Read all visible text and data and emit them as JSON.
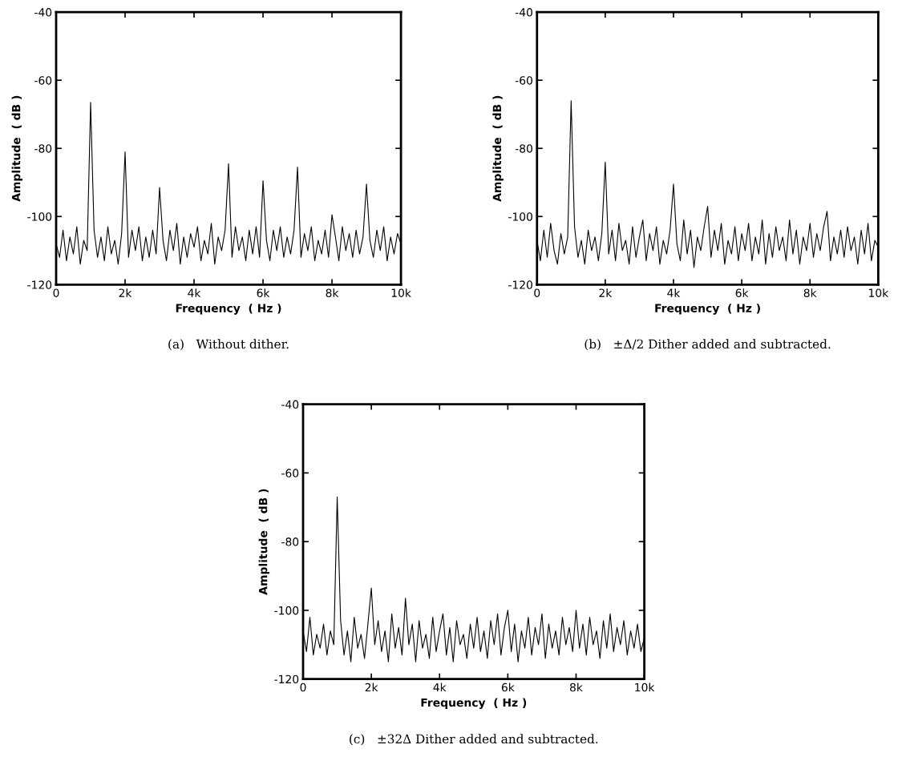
{
  "chart_data": [
    {
      "type": "line",
      "xlabel": "Frequency  ( Hz )",
      "ylabel": "Amplitude  ( dB )",
      "annotations": [
        "(a)   Without dither."
      ],
      "xlim": [
        0,
        10000
      ],
      "ylim": [
        -120,
        -40
      ],
      "xticks": [
        0,
        {
          "value": 2000,
          "label": "2k"
        },
        {
          "value": 4000,
          "label": "4k"
        },
        {
          "value": 6000,
          "label": "6k"
        },
        {
          "value": 8000,
          "label": "8k"
        },
        {
          "value": 10000,
          "label": "10k"
        }
      ],
      "yticks": [
        -120,
        -100,
        -80,
        -60,
        -40
      ],
      "x": [
        0,
        100,
        200,
        300,
        400,
        500,
        600,
        700,
        800,
        900,
        1000,
        1100,
        1200,
        1300,
        1400,
        1500,
        1600,
        1700,
        1800,
        1900,
        2000,
        2100,
        2200,
        2300,
        2400,
        2500,
        2600,
        2700,
        2800,
        2900,
        3000,
        3100,
        3200,
        3300,
        3400,
        3500,
        3600,
        3700,
        3800,
        3900,
        4000,
        4100,
        4200,
        4300,
        4400,
        4500,
        4600,
        4700,
        4800,
        4900,
        5000,
        5100,
        5200,
        5300,
        5400,
        5500,
        5600,
        5700,
        5800,
        5900,
        6000,
        6100,
        6200,
        6300,
        6400,
        6500,
        6600,
        6700,
        6800,
        6900,
        7000,
        7100,
        7200,
        7300,
        7400,
        7500,
        7600,
        7700,
        7800,
        7900,
        8000,
        8100,
        8200,
        8300,
        8400,
        8500,
        8600,
        8700,
        8800,
        8900,
        9000,
        9100,
        9200,
        9300,
        9400,
        9500,
        9600,
        9700,
        9800,
        9900,
        10000
      ],
      "series": [
        {
          "color": "#000000",
          "values": [
            -108,
            -112,
            -104,
            -113,
            -106,
            -111,
            -103,
            -114,
            -107,
            -110,
            -66.5,
            -104,
            -112,
            -106,
            -113,
            -103,
            -111,
            -107,
            -114,
            -105,
            -81,
            -112,
            -104,
            -110,
            -103,
            -113,
            -106,
            -112,
            -104,
            -111,
            -91.5,
            -107,
            -113,
            -104,
            -110,
            -102,
            -114,
            -106,
            -112,
            -105,
            -109,
            -103,
            -113,
            -107,
            -111,
            -102,
            -114,
            -106,
            -110,
            -104,
            -84.5,
            -112,
            -103,
            -110,
            -106,
            -113,
            -104,
            -111,
            -103,
            -112,
            -89.5,
            -107,
            -113,
            -104,
            -110,
            -103,
            -112,
            -106,
            -111,
            -104,
            -85.5,
            -112,
            -105,
            -110,
            -103,
            -113,
            -107,
            -111,
            -104,
            -112,
            -99.5,
            -106,
            -113,
            -103,
            -110,
            -105,
            -112,
            -104,
            -111,
            -106,
            -90.5,
            -107,
            -112,
            -104,
            -110,
            -103,
            -113,
            -106,
            -111,
            -105,
            -108
          ]
        }
      ]
    },
    {
      "type": "line",
      "xlabel": "Frequency  ( Hz )",
      "ylabel": "Amplitude  ( dB )",
      "annotations": [
        "(b)   ±Δ/2 Dither added and subtracted."
      ],
      "xlim": [
        0,
        10000
      ],
      "ylim": [
        -120,
        -40
      ],
      "xticks": [
        0,
        {
          "value": 2000,
          "label": "2k"
        },
        {
          "value": 4000,
          "label": "4k"
        },
        {
          "value": 6000,
          "label": "6k"
        },
        {
          "value": 8000,
          "label": "8k"
        },
        {
          "value": 10000,
          "label": "10k"
        }
      ],
      "yticks": [
        -120,
        -100,
        -80,
        -60,
        -40
      ],
      "x": [
        0,
        100,
        200,
        300,
        400,
        500,
        600,
        700,
        800,
        900,
        1000,
        1100,
        1200,
        1300,
        1400,
        1500,
        1600,
        1700,
        1800,
        1900,
        2000,
        2100,
        2200,
        2300,
        2400,
        2500,
        2600,
        2700,
        2800,
        2900,
        3000,
        3100,
        3200,
        3300,
        3400,
        3500,
        3600,
        3700,
        3800,
        3900,
        4000,
        4100,
        4200,
        4300,
        4400,
        4500,
        4600,
        4700,
        4800,
        4900,
        5000,
        5100,
        5200,
        5300,
        5400,
        5500,
        5600,
        5700,
        5800,
        5900,
        6000,
        6100,
        6200,
        6300,
        6400,
        6500,
        6600,
        6700,
        6800,
        6900,
        7000,
        7100,
        7200,
        7300,
        7400,
        7500,
        7600,
        7700,
        7800,
        7900,
        8000,
        8100,
        8200,
        8300,
        8400,
        8500,
        8600,
        8700,
        8800,
        8900,
        9000,
        9100,
        9200,
        9300,
        9400,
        9500,
        9600,
        9700,
        9800,
        9900,
        10000
      ],
      "series": [
        {
          "color": "#000000",
          "values": [
            -107,
            -113,
            -104,
            -112,
            -102,
            -110,
            -114,
            -105,
            -111,
            -106,
            -66,
            -103,
            -112,
            -107,
            -114,
            -104,
            -110,
            -106,
            -113,
            -105,
            -84,
            -111,
            -104,
            -113,
            -102,
            -110,
            -107,
            -114,
            -103,
            -112,
            -106,
            -101,
            -113,
            -105,
            -110,
            -103,
            -114,
            -107,
            -111,
            -104,
            -90.5,
            -108,
            -113,
            -101,
            -111,
            -104,
            -115,
            -106,
            -110,
            -103,
            -97,
            -112,
            -104,
            -110,
            -102,
            -114,
            -107,
            -111,
            -103,
            -113,
            -105,
            -110,
            -102,
            -113,
            -106,
            -111,
            -101,
            -114,
            -105,
            -112,
            -103,
            -110,
            -106,
            -113,
            -101,
            -111,
            -104,
            -114,
            -106,
            -110,
            -102,
            -112,
            -105,
            -110,
            -103,
            -98.5,
            -113,
            -106,
            -111,
            -104,
            -112,
            -103,
            -110,
            -106,
            -114,
            -104,
            -111,
            -102,
            -113,
            -107,
            -109
          ]
        }
      ]
    },
    {
      "type": "line",
      "xlabel": "Frequency  ( Hz )",
      "ylabel": "Amplitude  ( dB )",
      "annotations": [
        "(c)   ±32Δ Dither added and subtracted."
      ],
      "xlim": [
        0,
        10000
      ],
      "ylim": [
        -120,
        -40
      ],
      "xticks": [
        0,
        {
          "value": 2000,
          "label": "2k"
        },
        {
          "value": 4000,
          "label": "4k"
        },
        {
          "value": 6000,
          "label": "6k"
        },
        {
          "value": 8000,
          "label": "8k"
        },
        {
          "value": 10000,
          "label": "10k"
        }
      ],
      "yticks": [
        -120,
        -100,
        -80,
        -60,
        -40
      ],
      "x": [
        0,
        100,
        200,
        300,
        400,
        500,
        600,
        700,
        800,
        900,
        1000,
        1100,
        1200,
        1300,
        1400,
        1500,
        1600,
        1700,
        1800,
        1900,
        2000,
        2100,
        2200,
        2300,
        2400,
        2500,
        2600,
        2700,
        2800,
        2900,
        3000,
        3100,
        3200,
        3300,
        3400,
        3500,
        3600,
        3700,
        3800,
        3900,
        4000,
        4100,
        4200,
        4300,
        4400,
        4500,
        4600,
        4700,
        4800,
        4900,
        5000,
        5100,
        5200,
        5300,
        5400,
        5500,
        5600,
        5700,
        5800,
        5900,
        6000,
        6100,
        6200,
        6300,
        6400,
        6500,
        6600,
        6700,
        6800,
        6900,
        7000,
        7100,
        7200,
        7300,
        7400,
        7500,
        7600,
        7700,
        7800,
        7900,
        8000,
        8100,
        8200,
        8300,
        8400,
        8500,
        8600,
        8700,
        8800,
        8900,
        9000,
        9100,
        9200,
        9300,
        9400,
        9500,
        9600,
        9700,
        9800,
        9900,
        10000
      ],
      "series": [
        {
          "color": "#000000",
          "values": [
            -106,
            -112,
            -102,
            -113,
            -107,
            -111,
            -104,
            -113,
            -106,
            -110,
            -67,
            -103,
            -113,
            -106,
            -115,
            -102,
            -111,
            -107,
            -114,
            -104,
            -93.5,
            -110,
            -103,
            -112,
            -106,
            -115,
            -101,
            -111,
            -105,
            -113,
            -96.5,
            -110,
            -104,
            -115,
            -103,
            -111,
            -107,
            -114,
            -102,
            -112,
            -106,
            -101,
            -113,
            -105,
            -115,
            -103,
            -110,
            -107,
            -114,
            -104,
            -111,
            -102,
            -112,
            -106,
            -114,
            -103,
            -110,
            -101,
            -113,
            -105,
            -100,
            -112,
            -104,
            -115,
            -106,
            -111,
            -102,
            -113,
            -105,
            -110,
            -101,
            -114,
            -104,
            -111,
            -106,
            -113,
            -102,
            -110,
            -105,
            -112,
            -100,
            -111,
            -104,
            -113,
            -102,
            -110,
            -106,
            -114,
            -103,
            -111,
            -101,
            -112,
            -105,
            -110,
            -103,
            -113,
            -106,
            -111,
            -104,
            -112,
            -108
          ]
        }
      ]
    }
  ]
}
